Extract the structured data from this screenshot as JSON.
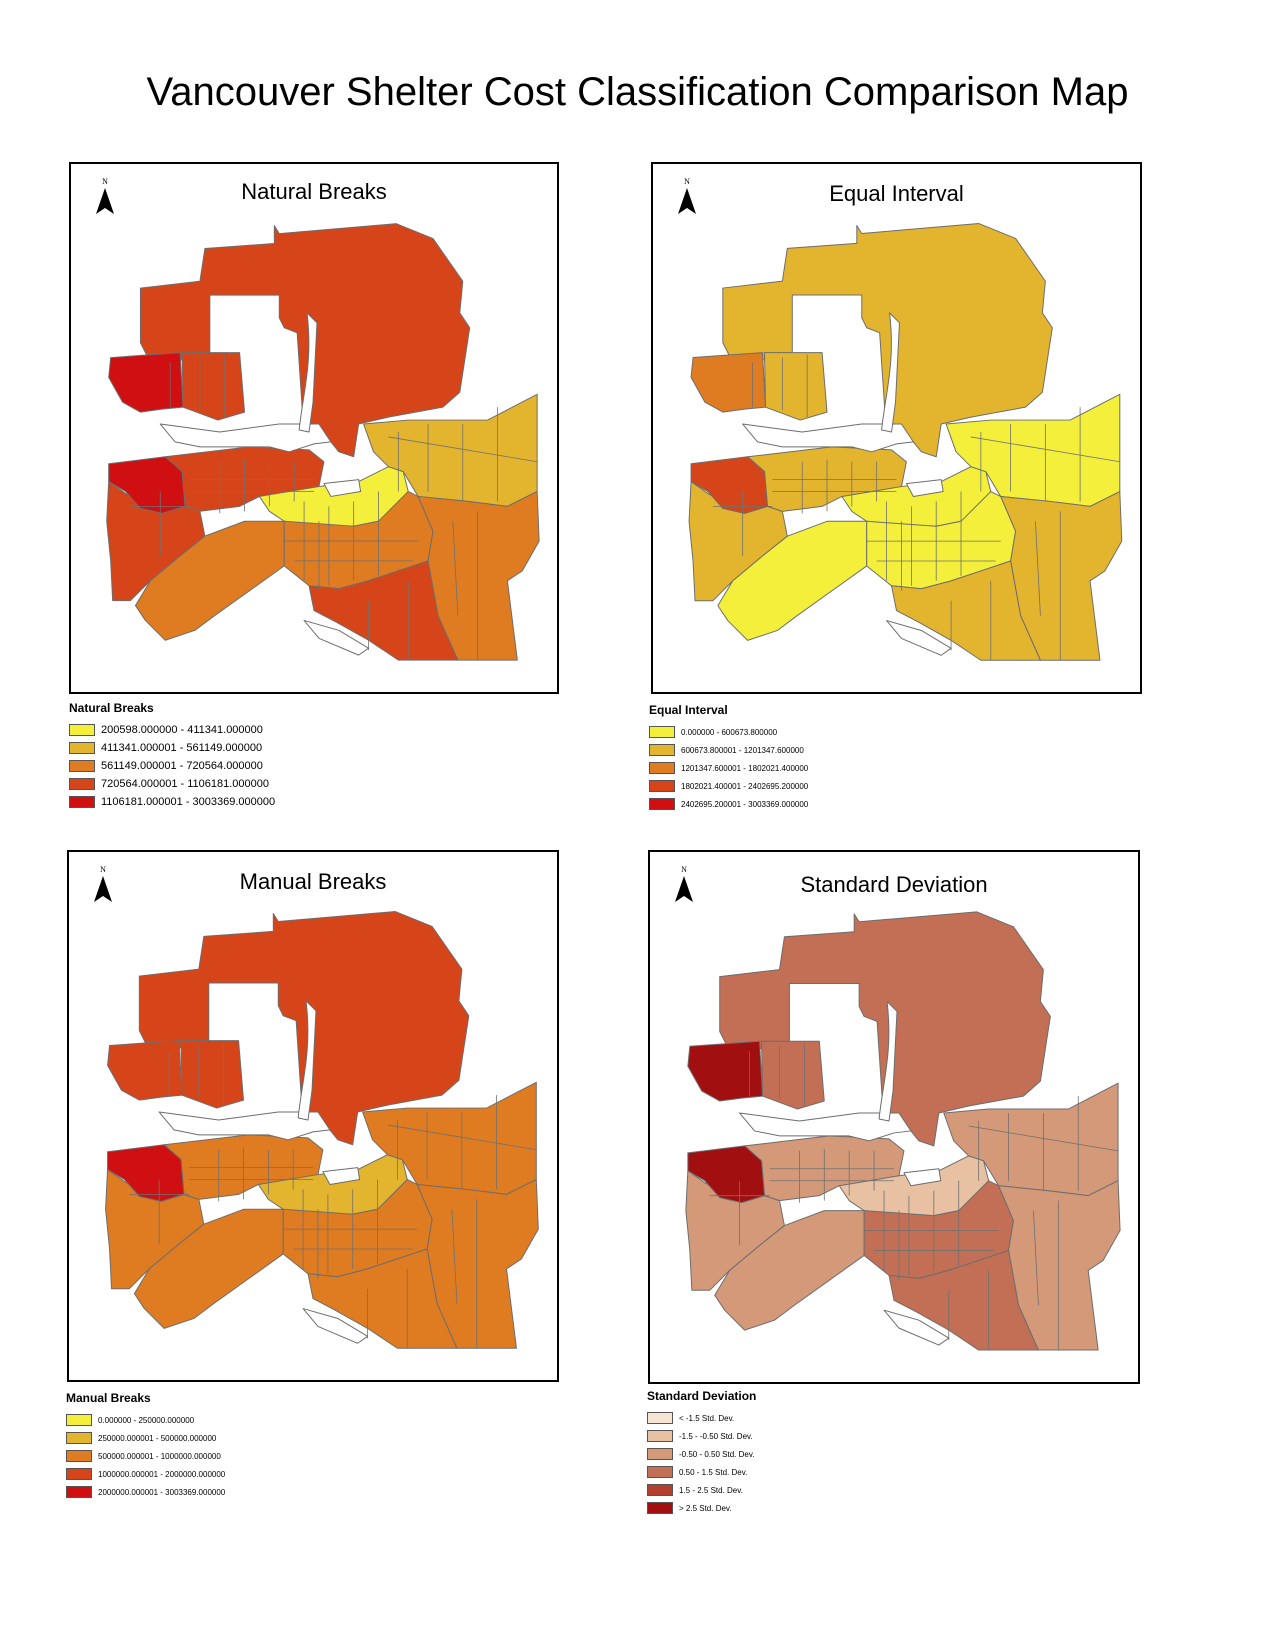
{
  "page_title": "Vancouver Shelter Cost Classification Comparison Map",
  "north_label": "N",
  "maps": [
    {
      "key": "natural",
      "title": "Natural Breaks",
      "legend_title": "Natural Breaks",
      "classes": [
        {
          "label": "200598.000000 - 411341.000000",
          "color": "#f3ef3a"
        },
        {
          "label": "411341.000001 - 561149.000000",
          "color": "#e3b42e"
        },
        {
          "label": "561149.000001 - 720564.000000",
          "color": "#df7c21"
        },
        {
          "label": "720564.000001 - 1106181.000000",
          "color": "#d6451a"
        },
        {
          "label": "1106181.000001 - 3003369.000000",
          "color": "#cf0f12"
        }
      ],
      "region_classes": {
        "north": 3,
        "northwest": 4,
        "downtown": 4,
        "westside": 3,
        "southwest": 2,
        "centralsouth": 2,
        "central": 0,
        "east": 1,
        "southeast": 2,
        "southpoint": 3
      }
    },
    {
      "key": "equal",
      "title": "Equal Interval",
      "legend_title": "Equal Interval",
      "classes": [
        {
          "label": "0.000000 - 600673.800000",
          "color": "#f3ef3a"
        },
        {
          "label": "600673.800001 - 1201347.600000",
          "color": "#e3b42e"
        },
        {
          "label": "1201347.600001 - 1802021.400000",
          "color": "#df7c21"
        },
        {
          "label": "1802021.400001 - 2402695.200000",
          "color": "#d6451a"
        },
        {
          "label": "2402695.200001 - 3003369.000000",
          "color": "#cf0f12"
        }
      ],
      "region_classes": {
        "north": 1,
        "northwest": 2,
        "downtown": 3,
        "westside": 1,
        "southwest": 0,
        "centralsouth": 0,
        "central": 0,
        "east": 0,
        "southeast": 1,
        "southpoint": 1
      }
    },
    {
      "key": "manual",
      "title": "Manual Breaks",
      "legend_title": "Manual Breaks",
      "classes": [
        {
          "label": "0.000000 - 250000.000000",
          "color": "#f3ef3a"
        },
        {
          "label": "250000.000001 - 500000.000000",
          "color": "#e3b42e"
        },
        {
          "label": "500000.000001 - 1000000.000000",
          "color": "#df7c21"
        },
        {
          "label": "1000000.000001 - 2000000.000000",
          "color": "#d6451a"
        },
        {
          "label": "2000000.000001 - 3003369.000000",
          "color": "#cf0f12"
        }
      ],
      "region_classes": {
        "north": 3,
        "northwest": 3,
        "downtown": 4,
        "westside": 2,
        "southwest": 2,
        "centralsouth": 2,
        "central": 1,
        "east": 2,
        "southeast": 2,
        "southpoint": 2
      }
    },
    {
      "key": "stddev",
      "title": "Standard Deviation",
      "legend_title": "Standard Deviation",
      "classes": [
        {
          "label": "< -1.5 Std. Dev.",
          "color": "#f6e4d2"
        },
        {
          "label": "-1.5 - -0.50 Std. Dev.",
          "color": "#e8c0a2"
        },
        {
          "label": "-0.50 - 0.50 Std. Dev.",
          "color": "#d49978"
        },
        {
          "label": "0.50 - 1.5 Std. Dev.",
          "color": "#c26f55"
        },
        {
          "label": "1.5 - 2.5 Std. Dev.",
          "color": "#b3402f"
        },
        {
          "label": "> 2.5 Std. Dev.",
          "color": "#a10f10"
        }
      ],
      "region_classes": {
        "north": 3,
        "northwest": 5,
        "downtown": 5,
        "westside": 2,
        "southwest": 2,
        "centralsouth": 3,
        "central": 1,
        "east": 2,
        "southeast": 2,
        "southpoint": 3
      }
    }
  ]
}
